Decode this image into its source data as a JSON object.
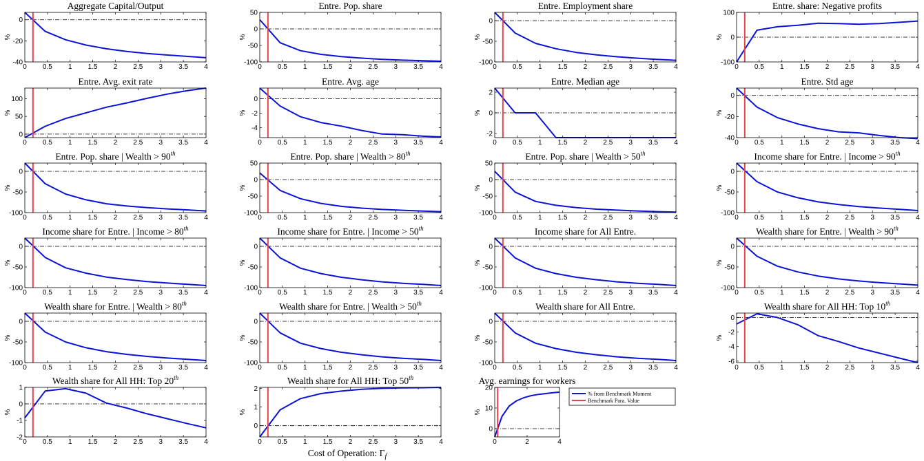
{
  "colors": {
    "series": "#0a13d6",
    "benchmark": "#e8424b",
    "zero": "#000000"
  },
  "xlabel": "Cost of Operation: Γ",
  "xlabel_sub": "f",
  "legend": {
    "series": "% from Benchmark Moment",
    "benchmark": "Benchmark Para. Value"
  },
  "chart_data": [
    {
      "type": "line",
      "title": "Aggregate Capital/Output",
      "sup": "",
      "ylabel": "%",
      "xlim": [
        0,
        4
      ],
      "ylim": [
        -40,
        7
      ],
      "yticks": [
        -40,
        -20,
        0
      ],
      "x": [
        0,
        0.45,
        0.9,
        1.35,
        1.8,
        2.25,
        2.7,
        3.15,
        3.6,
        4.0
      ],
      "y": [
        7,
        -11,
        -19,
        -24,
        -27.5,
        -30,
        -32,
        -33.5,
        -34.8,
        -36
      ],
      "benchmark": 0.18
    },
    {
      "type": "line",
      "title": "Entre. Pop. share",
      "sup": "",
      "ylabel": "%",
      "xlim": [
        0,
        4
      ],
      "ylim": [
        -100,
        50
      ],
      "yticks": [
        -100,
        -50,
        0,
        50
      ],
      "x": [
        0,
        0.45,
        0.9,
        1.35,
        1.8,
        2.25,
        2.7,
        3.15,
        3.6,
        4.0
      ],
      "y": [
        28,
        -42,
        -66,
        -77,
        -84,
        -88.5,
        -92,
        -94.5,
        -96.5,
        -98
      ],
      "benchmark": 0.18
    },
    {
      "type": "line",
      "title": "Entre. Employment share",
      "sup": "",
      "ylabel": "%",
      "xlim": [
        0,
        4
      ],
      "ylim": [
        -100,
        20
      ],
      "yticks": [
        -100,
        -50,
        0
      ],
      "x": [
        0,
        0.45,
        0.9,
        1.35,
        1.8,
        2.25,
        2.7,
        3.15,
        3.6,
        4.0
      ],
      "y": [
        20,
        -30,
        -55,
        -68,
        -77,
        -83,
        -87.5,
        -91,
        -94,
        -96
      ],
      "benchmark": 0.18
    },
    {
      "type": "line",
      "title": "Entre. share: Negative profits",
      "sup": "",
      "ylabel": "%",
      "xlim": [
        0,
        4
      ],
      "ylim": [
        -100,
        100
      ],
      "yticks": [
        -100,
        0,
        100
      ],
      "x": [
        0,
        0.45,
        0.9,
        1.35,
        1.8,
        2.25,
        2.7,
        3.15,
        3.6,
        4.0
      ],
      "y": [
        -100,
        28,
        42,
        48,
        56,
        55,
        52,
        55,
        60,
        65
      ],
      "benchmark": 0.18
    },
    {
      "type": "line",
      "title": "Entre. Avg. exit rate",
      "sup": "",
      "ylabel": "%",
      "xlim": [
        0,
        4
      ],
      "ylim": [
        -10,
        130
      ],
      "yticks": [
        0,
        50,
        100
      ],
      "x": [
        0,
        0.45,
        0.9,
        1.35,
        1.8,
        2.25,
        2.7,
        3.15,
        3.6,
        4.0
      ],
      "y": [
        -10,
        22,
        44,
        60,
        76,
        88,
        101,
        113,
        123,
        130
      ],
      "benchmark": 0.18
    },
    {
      "type": "line",
      "title": "Entre. Avg. age",
      "sup": "",
      "ylabel": "%",
      "xlim": [
        0,
        4
      ],
      "ylim": [
        -5.4,
        1.5
      ],
      "yticks": [
        -4,
        -2,
        0
      ],
      "x": [
        0,
        0.45,
        0.9,
        1.35,
        1.8,
        2.25,
        2.7,
        3.15,
        3.6,
        4.0
      ],
      "y": [
        1.5,
        -1.0,
        -2.5,
        -3.3,
        -3.8,
        -4.4,
        -4.9,
        -5.0,
        -5.2,
        -5.3
      ],
      "benchmark": 0.18
    },
    {
      "type": "line",
      "title": "Entre. Median age",
      "sup": "",
      "ylabel": "%",
      "xlim": [
        0,
        4
      ],
      "ylim": [
        -2.4,
        2.4
      ],
      "yticks": [
        -2,
        0,
        2
      ],
      "x": [
        0,
        0.45,
        0.9,
        1.35,
        1.8,
        2.25,
        2.7,
        3.15,
        3.6,
        4.0
      ],
      "y": [
        2.4,
        0,
        0,
        -2.4,
        -2.4,
        -2.4,
        -2.4,
        -2.4,
        -2.4,
        -2.4
      ],
      "benchmark": 0.18
    },
    {
      "type": "line",
      "title": "Entre. Std age",
      "sup": "",
      "ylabel": "%",
      "xlim": [
        0,
        4
      ],
      "ylim": [
        -40,
        7
      ],
      "yticks": [
        -40,
        -20,
        0
      ],
      "x": [
        0,
        0.45,
        0.9,
        1.35,
        1.8,
        2.25,
        2.7,
        3.15,
        3.6,
        4.0
      ],
      "y": [
        7,
        -11,
        -21,
        -27,
        -31.5,
        -34.5,
        -35.5,
        -38,
        -40,
        -41
      ],
      "benchmark": 0.18
    },
    {
      "type": "line",
      "title": "Entre. Pop. share | Wealth > 90",
      "sup": "th",
      "ylabel": "%",
      "xlim": [
        0,
        4
      ],
      "ylim": [
        -100,
        20
      ],
      "yticks": [
        -100,
        -50,
        0
      ],
      "x": [
        0,
        0.45,
        0.9,
        1.35,
        1.8,
        2.25,
        2.7,
        3.15,
        3.6,
        4.0
      ],
      "y": [
        20,
        -30,
        -55,
        -69,
        -78.5,
        -84,
        -88,
        -91,
        -93.5,
        -96
      ],
      "benchmark": 0.18
    },
    {
      "type": "line",
      "title": "Entre. Pop. share | Wealth > 80",
      "sup": "th",
      "ylabel": "%",
      "xlim": [
        0,
        4
      ],
      "ylim": [
        -100,
        50
      ],
      "yticks": [
        -100,
        -50,
        0,
        50
      ],
      "x": [
        0,
        0.45,
        0.9,
        1.35,
        1.8,
        2.25,
        2.7,
        3.15,
        3.6,
        4.0
      ],
      "y": [
        20,
        -33,
        -58,
        -72,
        -81,
        -86.5,
        -90.5,
        -93,
        -95.5,
        -97
      ],
      "benchmark": 0.18
    },
    {
      "type": "line",
      "title": "Entre. Pop. share | Wealth > 50",
      "sup": "th",
      "ylabel": "%",
      "xlim": [
        0,
        4
      ],
      "ylim": [
        -100,
        50
      ],
      "yticks": [
        -100,
        -50,
        0,
        50
      ],
      "x": [
        0,
        0.45,
        0.9,
        1.35,
        1.8,
        2.25,
        2.7,
        3.15,
        3.6,
        4.0
      ],
      "y": [
        25,
        -38,
        -66,
        -78,
        -85,
        -89.5,
        -92.5,
        -95,
        -97,
        -98.5
      ],
      "benchmark": 0.18
    },
    {
      "type": "line",
      "title": "Income share for Entre. | Income > 90",
      "sup": "th",
      "ylabel": "%",
      "xlim": [
        0,
        4
      ],
      "ylim": [
        -100,
        20
      ],
      "yticks": [
        -100,
        -50,
        0
      ],
      "x": [
        0,
        0.45,
        0.9,
        1.35,
        1.8,
        2.25,
        2.7,
        3.15,
        3.6,
        4.0
      ],
      "y": [
        20,
        -25,
        -50,
        -64,
        -74,
        -80.5,
        -85.5,
        -89,
        -92,
        -95
      ],
      "benchmark": 0.18
    },
    {
      "type": "line",
      "title": "Income share for Entre. | Income > 80",
      "sup": "th",
      "ylabel": "%",
      "xlim": [
        0,
        4
      ],
      "ylim": [
        -100,
        20
      ],
      "yticks": [
        -100,
        -50,
        0
      ],
      "x": [
        0,
        0.45,
        0.9,
        1.35,
        1.8,
        2.25,
        2.7,
        3.15,
        3.6,
        4.0
      ],
      "y": [
        20,
        -27,
        -52,
        -65,
        -74.5,
        -80.5,
        -85.5,
        -89,
        -92,
        -95
      ],
      "benchmark": 0.18
    },
    {
      "type": "line",
      "title": "Income share for Entre. | Income > 50",
      "sup": "th",
      "ylabel": "%",
      "xlim": [
        0,
        4
      ],
      "ylim": [
        -100,
        20
      ],
      "yticks": [
        -100,
        -50,
        0
      ],
      "x": [
        0,
        0.45,
        0.9,
        1.35,
        1.8,
        2.25,
        2.7,
        3.15,
        3.6,
        4.0
      ],
      "y": [
        20,
        -28,
        -53,
        -66,
        -75,
        -81,
        -86,
        -89.5,
        -92,
        -95
      ],
      "benchmark": 0.18
    },
    {
      "type": "line",
      "title": "Income share for All Entre.",
      "sup": "",
      "ylabel": "%",
      "xlim": [
        0,
        4
      ],
      "ylim": [
        -100,
        20
      ],
      "yticks": [
        -100,
        -50,
        0
      ],
      "x": [
        0,
        0.45,
        0.9,
        1.35,
        1.8,
        2.25,
        2.7,
        3.15,
        3.6,
        4.0
      ],
      "y": [
        20,
        -28,
        -53,
        -66,
        -75,
        -81,
        -86,
        -89.5,
        -92,
        -95
      ],
      "benchmark": 0.18
    },
    {
      "type": "line",
      "title": "Wealth share for Entre. | Wealth > 90",
      "sup": "th",
      "ylabel": "%",
      "xlim": [
        0,
        4
      ],
      "ylim": [
        -100,
        20
      ],
      "yticks": [
        -100,
        -50,
        0
      ],
      "x": [
        0,
        0.45,
        0.9,
        1.35,
        1.8,
        2.25,
        2.7,
        3.15,
        3.6,
        4.0
      ],
      "y": [
        20,
        -24,
        -48,
        -62,
        -72,
        -79,
        -84,
        -88,
        -91,
        -94
      ],
      "benchmark": 0.18
    },
    {
      "type": "line",
      "title": "Wealth share for Entre. | Wealth > 80",
      "sup": "th",
      "ylabel": "%",
      "xlim": [
        0,
        4
      ],
      "ylim": [
        -100,
        20
      ],
      "yticks": [
        -100,
        -50,
        0
      ],
      "x": [
        0,
        0.45,
        0.9,
        1.35,
        1.8,
        2.25,
        2.7,
        3.15,
        3.6,
        4.0
      ],
      "y": [
        20,
        -26,
        -50,
        -64,
        -73.5,
        -80,
        -85,
        -89,
        -92,
        -95
      ],
      "benchmark": 0.18
    },
    {
      "type": "line",
      "title": "Wealth share for Entre. | Wealth > 50",
      "sup": "th",
      "ylabel": "%",
      "xlim": [
        0,
        4
      ],
      "ylim": [
        -100,
        20
      ],
      "yticks": [
        -100,
        -50,
        0
      ],
      "x": [
        0,
        0.45,
        0.9,
        1.35,
        1.8,
        2.25,
        2.7,
        3.15,
        3.6,
        4.0
      ],
      "y": [
        20,
        -28,
        -53,
        -66,
        -75,
        -81,
        -86,
        -89.5,
        -92,
        -95
      ],
      "benchmark": 0.18
    },
    {
      "type": "line",
      "title": "Wealth share for All Entre.",
      "sup": "",
      "ylabel": "%",
      "xlim": [
        0,
        4
      ],
      "ylim": [
        -100,
        20
      ],
      "yticks": [
        -100,
        -50,
        0
      ],
      "x": [
        0,
        0.45,
        0.9,
        1.35,
        1.8,
        2.25,
        2.7,
        3.15,
        3.6,
        4.0
      ],
      "y": [
        20,
        -28,
        -53,
        -66,
        -75,
        -81,
        -86,
        -89.5,
        -92,
        -95
      ],
      "benchmark": 0.18
    },
    {
      "type": "line",
      "title": "Wealth share for All HH: Top 10",
      "sup": "th",
      "ylabel": "%",
      "xlim": [
        0,
        4
      ],
      "ylim": [
        -6.2,
        0.6
      ],
      "yticks": [
        -6,
        -4,
        -2,
        0
      ],
      "x": [
        0,
        0.45,
        0.9,
        1.35,
        1.8,
        2.25,
        2.7,
        3.15,
        3.6,
        4.0
      ],
      "y": [
        -0.9,
        0.5,
        0.0,
        -1.0,
        -2.5,
        -3.3,
        -4.2,
        -4.9,
        -5.6,
        -6.2
      ],
      "benchmark": 0.18
    },
    {
      "type": "line",
      "title": "Wealth share for All HH: Top 20",
      "sup": "th",
      "ylabel": "%",
      "xlim": [
        0,
        4
      ],
      "ylim": [
        -2,
        1
      ],
      "yticks": [
        -2,
        -1,
        0,
        1
      ],
      "x": [
        0,
        0.45,
        0.9,
        1.35,
        1.8,
        2.25,
        2.7,
        3.15,
        3.6,
        4.0
      ],
      "y": [
        -0.85,
        0.78,
        0.92,
        0.65,
        0.05,
        -0.25,
        -0.6,
        -0.9,
        -1.2,
        -1.45
      ],
      "benchmark": 0.18
    },
    {
      "type": "line",
      "title": "Wealth share for All HH: Top 50",
      "sup": "th",
      "ylabel": "%",
      "xlim": [
        0,
        4
      ],
      "ylim": [
        -0.6,
        2.05
      ],
      "yticks": [
        0,
        1,
        2
      ],
      "x": [
        0,
        0.45,
        0.9,
        1.35,
        1.8,
        2.25,
        2.7,
        3.15,
        3.6,
        4.0
      ],
      "y": [
        -0.6,
        0.85,
        1.45,
        1.72,
        1.85,
        1.95,
        2.0,
        2.02,
        2.03,
        2.05
      ],
      "benchmark": 0.18
    },
    {
      "type": "line",
      "title": "Avg. earnings for workers",
      "sup": "",
      "ylabel": "%",
      "xlim": [
        0,
        4
      ],
      "ylim": [
        -4,
        20
      ],
      "yticks": [
        0,
        10,
        20
      ],
      "x": [
        0,
        0.45,
        0.9,
        1.35,
        1.8,
        2.25,
        2.7,
        3.15,
        3.6,
        4.0
      ],
      "y": [
        -4,
        6,
        11,
        13.5,
        15,
        16,
        16.6,
        17,
        17.4,
        17.7
      ],
      "benchmark": 0.18
    }
  ]
}
